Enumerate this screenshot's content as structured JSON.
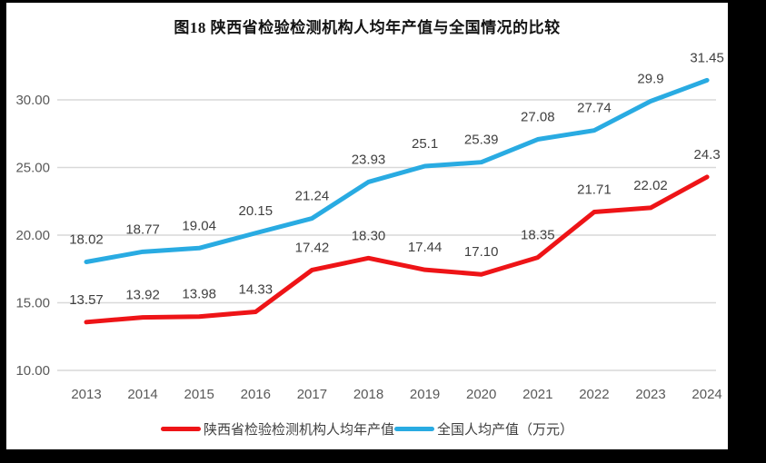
{
  "title": "图18 陕西省检验检测机构人均年产值与全国情况的比较",
  "chart_data": {
    "type": "line",
    "x_categories": [
      "2013",
      "2014",
      "2015",
      "2016",
      "2017",
      "2018",
      "2019",
      "2020",
      "2021",
      "2022",
      "2023",
      "2024"
    ],
    "series": [
      {
        "name": "陕西省检验检测机构人均年产值",
        "color": "#ee1417",
        "values": [
          13.57,
          13.92,
          13.98,
          14.33,
          17.42,
          18.3,
          17.44,
          17.1,
          18.35,
          21.71,
          22.02,
          24.3
        ],
        "labels": [
          "13.57",
          "13.92",
          "13.98",
          "14.33",
          "17.42",
          "18.30",
          "17.44",
          "17.10",
          "18.35",
          "21.71",
          "22.02",
          "24.3"
        ]
      },
      {
        "name": "全国人均产值（万元）",
        "color": "#29abe2",
        "values": [
          18.02,
          18.77,
          19.04,
          20.15,
          21.24,
          23.93,
          25.1,
          25.39,
          27.08,
          27.74,
          29.9,
          31.45
        ],
        "labels": [
          "18.02",
          "18.77",
          "19.04",
          "20.15",
          "21.24",
          "23.93",
          "25.1",
          "25.39",
          "27.08",
          "27.74",
          "29.9",
          "31.45"
        ]
      }
    ],
    "y_ticks": [
      "10.00",
      "15.00",
      "20.00",
      "25.00",
      "30.00"
    ],
    "ylim": [
      10,
      32.5
    ],
    "grid": true,
    "legend_position": "bottom",
    "colors": {
      "gridline": "#d9d9d9",
      "axis_text": "#595959",
      "data_label": "#404040",
      "title_text": "#141414",
      "matte": "#000000",
      "background": "#ffffff"
    }
  }
}
